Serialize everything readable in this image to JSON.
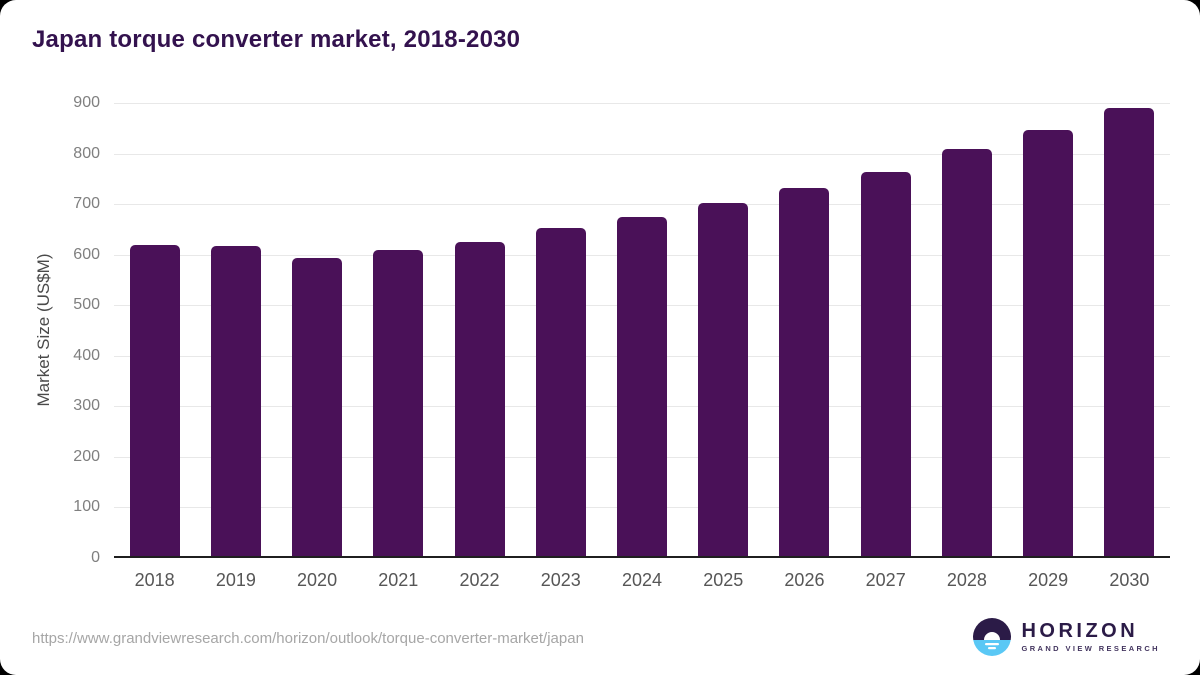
{
  "colors": {
    "bar": "#4a1158",
    "title": "#33124e",
    "grid": "#e8e8e8",
    "baseline": "#1f1f1f",
    "ytick": "#7f7f7f",
    "xtick": "#565656",
    "axis_title": "#4a4a4a",
    "url": "#a6a6a6",
    "logo_purple": "#2b1b47",
    "logo_blue": "#5ac8f5",
    "logo_subtitle": "#43355f",
    "card_background": "#ffffff",
    "page_background": "#000000"
  },
  "chart_data": {
    "type": "bar",
    "title": "Japan torque converter market, 2018-2030",
    "categories": [
      "2018",
      "2019",
      "2020",
      "2021",
      "2022",
      "2023",
      "2024",
      "2025",
      "2026",
      "2027",
      "2028",
      "2029",
      "2030"
    ],
    "values": [
      616,
      613,
      589,
      605,
      621,
      648,
      670,
      698,
      727,
      760,
      805,
      842,
      886
    ],
    "xlabel": "",
    "ylabel": "Market Size (US$M)",
    "ylim": [
      0,
      900
    ],
    "ytick_step": 100,
    "grid": "horizontal-only",
    "legend": "none",
    "bar_color": "#4a1158"
  },
  "footer": {
    "url": "https://www.grandviewresearch.com/horizon/outlook/torque-converter-market/japan",
    "logo": {
      "name": "HORIZON",
      "subtitle": "GRAND VIEW RESEARCH"
    }
  }
}
